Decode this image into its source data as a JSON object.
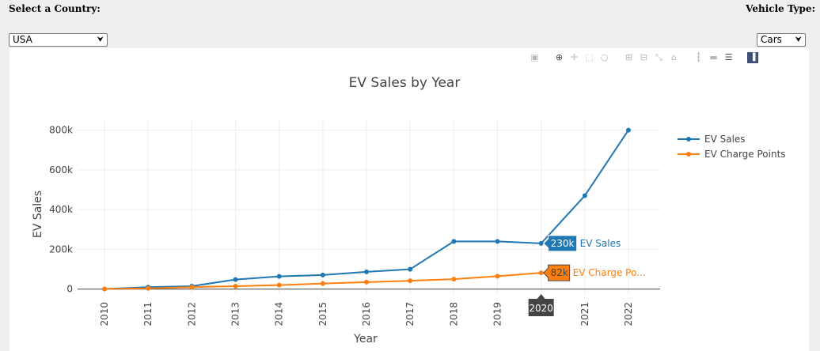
{
  "header": {
    "country_label": "Select a Country:",
    "country_value": "USA",
    "vehicle_label": "Vehicle Type:",
    "vehicle_value": "Cars"
  },
  "modebar": {
    "icons": [
      "camera-icon",
      "zoom-icon",
      "pan-icon",
      "box-select-icon",
      "lasso-icon",
      "zoom-in-icon",
      "zoom-out-icon",
      "autoscale-icon",
      "reset-axes-icon",
      "spike-lines-icon",
      "hover-closest-icon",
      "hover-compare-icon",
      "plotly-logo-icon"
    ]
  },
  "chart_data": {
    "type": "line",
    "title": "EV Sales by Year",
    "xlabel": "Year",
    "ylabel": "EV Sales",
    "x": [
      2010,
      2011,
      2012,
      2013,
      2014,
      2015,
      2016,
      2017,
      2018,
      2019,
      2020,
      2021,
      2022
    ],
    "xticks": [
      "2010",
      "2011",
      "2012",
      "2013",
      "2014",
      "2015",
      "2016",
      "2017",
      "2018",
      "2019",
      "",
      "2021",
      "2022"
    ],
    "yticks": [
      0,
      200000,
      400000,
      600000,
      800000
    ],
    "ytick_labels": [
      "0",
      "200k",
      "400k",
      "600k",
      "800k"
    ],
    "ylim": [
      -25000,
      850000
    ],
    "grid": true,
    "legend_position": "right",
    "series": [
      {
        "name": "EV Sales",
        "color": "#1f77b4",
        "values": [
          1000,
          10000,
          15000,
          48000,
          64000,
          71000,
          87000,
          100000,
          240000,
          240000,
          230000,
          470000,
          800000
        ]
      },
      {
        "name": "EV Charge Points",
        "color": "#ff7f0e",
        "values": [
          1000,
          4000,
          10000,
          15000,
          20000,
          28000,
          35000,
          42000,
          50000,
          65000,
          82000,
          null,
          null
        ]
      }
    ],
    "hover": {
      "x": 2020,
      "x_label": "2020",
      "labels": [
        {
          "series": 0,
          "value_label": "230k",
          "name_label": "EV Sales"
        },
        {
          "series": 1,
          "value_label": "82k",
          "name_label": "EV Charge Po..."
        }
      ]
    }
  }
}
